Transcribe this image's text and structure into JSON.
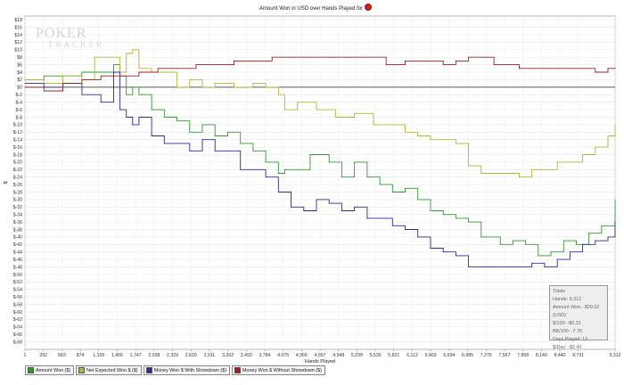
{
  "chart_data": {
    "type": "line",
    "title": "Amount Won in USD over Hands Played for",
    "xlabel": "Hands Played",
    "ylabel": "$",
    "xlim": [
      1,
      9312
    ],
    "ylim": [
      -70,
      19
    ],
    "x_ticks": [
      "1",
      "292",
      "583",
      "874",
      "1,165",
      "1,456",
      "1,747",
      "2,038",
      "2,329",
      "2,620",
      "2,911",
      "3,202",
      "3,493",
      "3,784",
      "4,075",
      "4,366",
      "4,657",
      "4,948",
      "5,239",
      "5,530",
      "5,821",
      "6,112",
      "6,403",
      "6,694",
      "6,985",
      "7,276",
      "7,567",
      "7,858",
      "8,149",
      "8,440",
      "8,731",
      "9,312"
    ],
    "y_ticks": [
      "$18",
      "$16",
      "$14",
      "$12",
      "$10",
      "$8",
      "$6",
      "$4",
      "$2",
      "$0",
      "$-2",
      "$-4",
      "$-6",
      "$-8",
      "$-10",
      "$-12",
      "$-14",
      "$-16",
      "$-18",
      "$-20",
      "$-22",
      "$-24",
      "$-26",
      "$-28",
      "$-30",
      "$-32",
      "$-34",
      "$-36",
      "$-38",
      "$-40",
      "$-42",
      "$-44",
      "$-46",
      "$-48",
      "$-50",
      "$-52",
      "$-54",
      "$-56",
      "$-58",
      "$-60",
      "$-62",
      "$-64",
      "$-66",
      "$-68"
    ],
    "grid": true,
    "legend_position": "bottom-left",
    "series": [
      {
        "name": "Amount Won ($)",
        "color": "#2e9a2e",
        "x": [
          1,
          300,
          600,
          900,
          1200,
          1400,
          1500,
          1600,
          1700,
          1800,
          2000,
          2200,
          2400,
          2600,
          2800,
          3000,
          3200,
          3400,
          3600,
          3800,
          4000,
          4100,
          4300,
          4500,
          4800,
          5000,
          5200,
          5400,
          5600,
          5800,
          6000,
          6200,
          6400,
          6600,
          6800,
          7000,
          7200,
          7500,
          7700,
          7900,
          8100,
          8300,
          8500,
          8700,
          8900,
          9100,
          9312
        ],
        "y": [
          2,
          3,
          3,
          4,
          4,
          6,
          3,
          -2,
          0,
          -2,
          -6,
          -8,
          -9,
          -12,
          -10,
          -13,
          -12,
          -15,
          -17,
          -20,
          -23,
          -22,
          -22,
          -18,
          -20,
          -24,
          -20,
          -24,
          -26,
          -28,
          -27,
          -30,
          -33,
          -34,
          -35,
          -36,
          -40,
          -42,
          -41,
          -42,
          -45,
          -44,
          -41,
          -42,
          -39,
          -37,
          -30
        ]
      },
      {
        "name": "Net Expected Won $ ($)",
        "color": "#b3b336",
        "x": [
          1,
          300,
          600,
          900,
          1100,
          1300,
          1500,
          1600,
          1700,
          1800,
          2000,
          2200,
          2400,
          2600,
          2800,
          3000,
          3300,
          3600,
          3800,
          4000,
          4100,
          4300,
          4600,
          4900,
          5200,
          5500,
          5800,
          6000,
          6200,
          6400,
          6600,
          6800,
          7000,
          7200,
          7500,
          7800,
          8000,
          8200,
          8400,
          8600,
          8800,
          9000,
          9200,
          9312
        ],
        "y": [
          2,
          1,
          3,
          2,
          8,
          8,
          4,
          9,
          10,
          5,
          4,
          4,
          0,
          2,
          0,
          1,
          0,
          1,
          0,
          -2,
          -6,
          -4,
          -6,
          -8,
          -7,
          -10,
          -10,
          -12,
          -13,
          -14,
          -14,
          -15,
          -21,
          -23,
          -23,
          -24,
          -22,
          -22,
          -20,
          -20,
          -18,
          -16,
          -13,
          -10
        ]
      },
      {
        "name": "Money Won $ With Showdown ($)",
        "color": "#2a2a9a",
        "x": [
          1,
          300,
          600,
          900,
          1200,
          1400,
          1500,
          1600,
          1700,
          1800,
          2000,
          2200,
          2400,
          2600,
          2800,
          3000,
          3200,
          3400,
          3600,
          3800,
          4000,
          4200,
          4400,
          4600,
          4800,
          5000,
          5200,
          5400,
          5600,
          5800,
          6000,
          6200,
          6400,
          6600,
          6800,
          7000,
          7200,
          7400,
          7600,
          7800,
          8000,
          8200,
          8400,
          8600,
          8800,
          9000,
          9200,
          9312
        ],
        "y": [
          1,
          0,
          1,
          -2,
          -4,
          4,
          -6,
          -8,
          -10,
          -8,
          -13,
          -15,
          -15,
          -17,
          -14,
          -17,
          -17,
          -22,
          -22,
          -24,
          -28,
          -32,
          -33,
          -30,
          -31,
          -33,
          -32,
          -35,
          -35,
          -37,
          -38,
          -40,
          -43,
          -44,
          -45,
          -48,
          -48,
          -48,
          -48,
          -48,
          -47,
          -48,
          -46,
          -44,
          -42,
          -41,
          -40,
          -36
        ]
      },
      {
        "name": "Money Won $ Without Showdown ($)",
        "color": "#9a2020",
        "x": [
          1,
          300,
          600,
          900,
          1200,
          1500,
          1800,
          2100,
          2400,
          2700,
          3000,
          3300,
          3600,
          3900,
          4200,
          4500,
          4800,
          5100,
          5400,
          5700,
          6000,
          6300,
          6600,
          6800,
          7000,
          7200,
          7400,
          7600,
          7800,
          8000,
          8200,
          8400,
          8600,
          8800,
          9000,
          9200,
          9312
        ],
        "y": [
          0,
          -1,
          1,
          2,
          3,
          3,
          4,
          5,
          5,
          6,
          6,
          7,
          7,
          8,
          8,
          8,
          8,
          8,
          8,
          6,
          7,
          7,
          6,
          7,
          8,
          8,
          6,
          6,
          5,
          5,
          5,
          5,
          5,
          5,
          4,
          5,
          5
        ]
      }
    ],
    "tooltip": {
      "title": "Totals",
      "lines": [
        "Hands: 9,312",
        "Amount Won: -$29.02 (USD)",
        "$/100: -$0.31",
        "BB/100: -7.76",
        "Days Played: 12",
        "$/Day: -$2.42"
      ]
    },
    "watermark": [
      "POKER",
      "TRACKER"
    ]
  }
}
